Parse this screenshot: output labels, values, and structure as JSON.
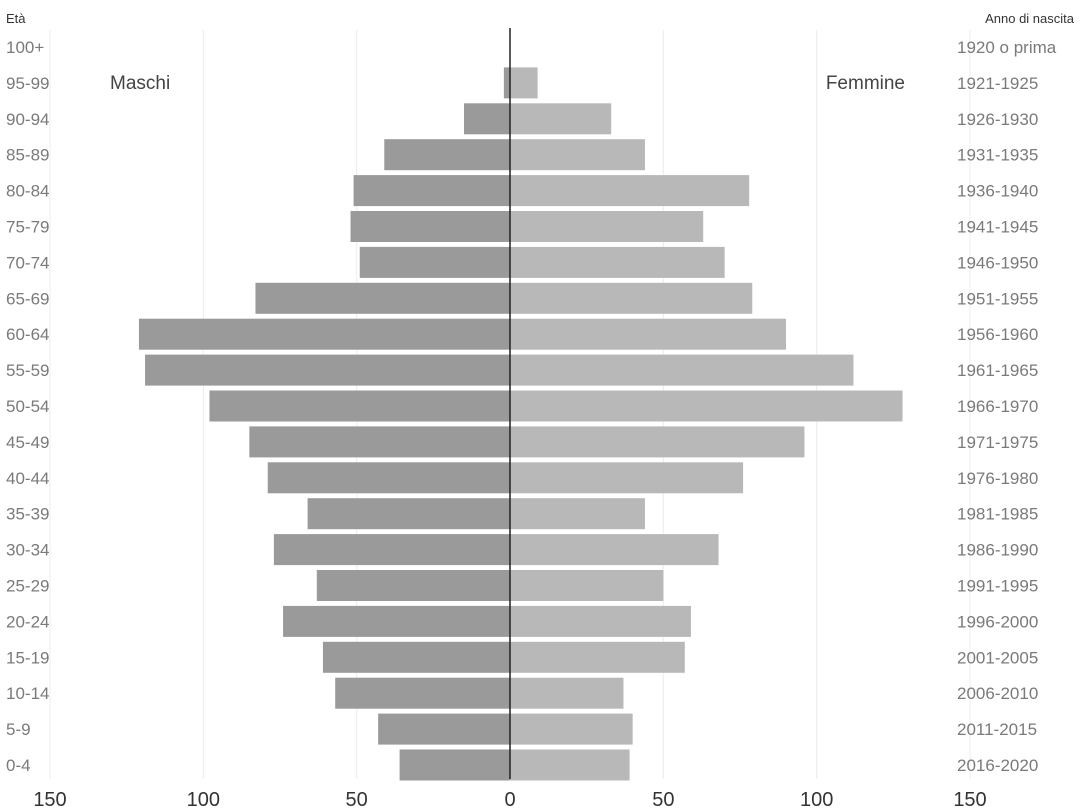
{
  "chart_data": {
    "type": "bar",
    "orientation": "horizontal",
    "subtype": "population-pyramid",
    "age_axis_title": "Età",
    "birth_axis_title": "Anno di nascita",
    "male_label": "Maschi",
    "female_label": "Femmine",
    "age_groups": [
      "100+",
      "95-99",
      "90-94",
      "85-89",
      "80-84",
      "75-79",
      "70-74",
      "65-69",
      "60-64",
      "55-59",
      "50-54",
      "45-49",
      "40-44",
      "35-39",
      "30-34",
      "25-29",
      "20-24",
      "15-19",
      "10-14",
      "5-9",
      "0-4"
    ],
    "birth_years": [
      "1920 o prima",
      "1921-1925",
      "1926-1930",
      "1931-1935",
      "1936-1940",
      "1941-1945",
      "1946-1950",
      "1951-1955",
      "1956-1960",
      "1961-1965",
      "1966-1970",
      "1971-1975",
      "1976-1980",
      "1981-1985",
      "1986-1990",
      "1991-1995",
      "1996-2000",
      "2001-2005",
      "2006-2010",
      "2011-2015",
      "2016-2020"
    ],
    "series": [
      {
        "name": "Maschi",
        "side": "left",
        "values": [
          0,
          2,
          15,
          41,
          51,
          52,
          49,
          83,
          121,
          119,
          98,
          85,
          79,
          66,
          77,
          63,
          74,
          61,
          57,
          43,
          36
        ]
      },
      {
        "name": "Femmine",
        "side": "right",
        "values": [
          0,
          9,
          33,
          44,
          78,
          63,
          70,
          79,
          90,
          112,
          128,
          96,
          76,
          44,
          68,
          50,
          59,
          57,
          37,
          40,
          39
        ]
      }
    ],
    "xlim": [
      -150,
      150
    ],
    "x_ticks": [
      150,
      100,
      50,
      0,
      50,
      100,
      150
    ],
    "grid": true,
    "colors": {
      "male": "#9a9a9a",
      "female": "#b8b8b8",
      "axis": "#222222"
    }
  }
}
